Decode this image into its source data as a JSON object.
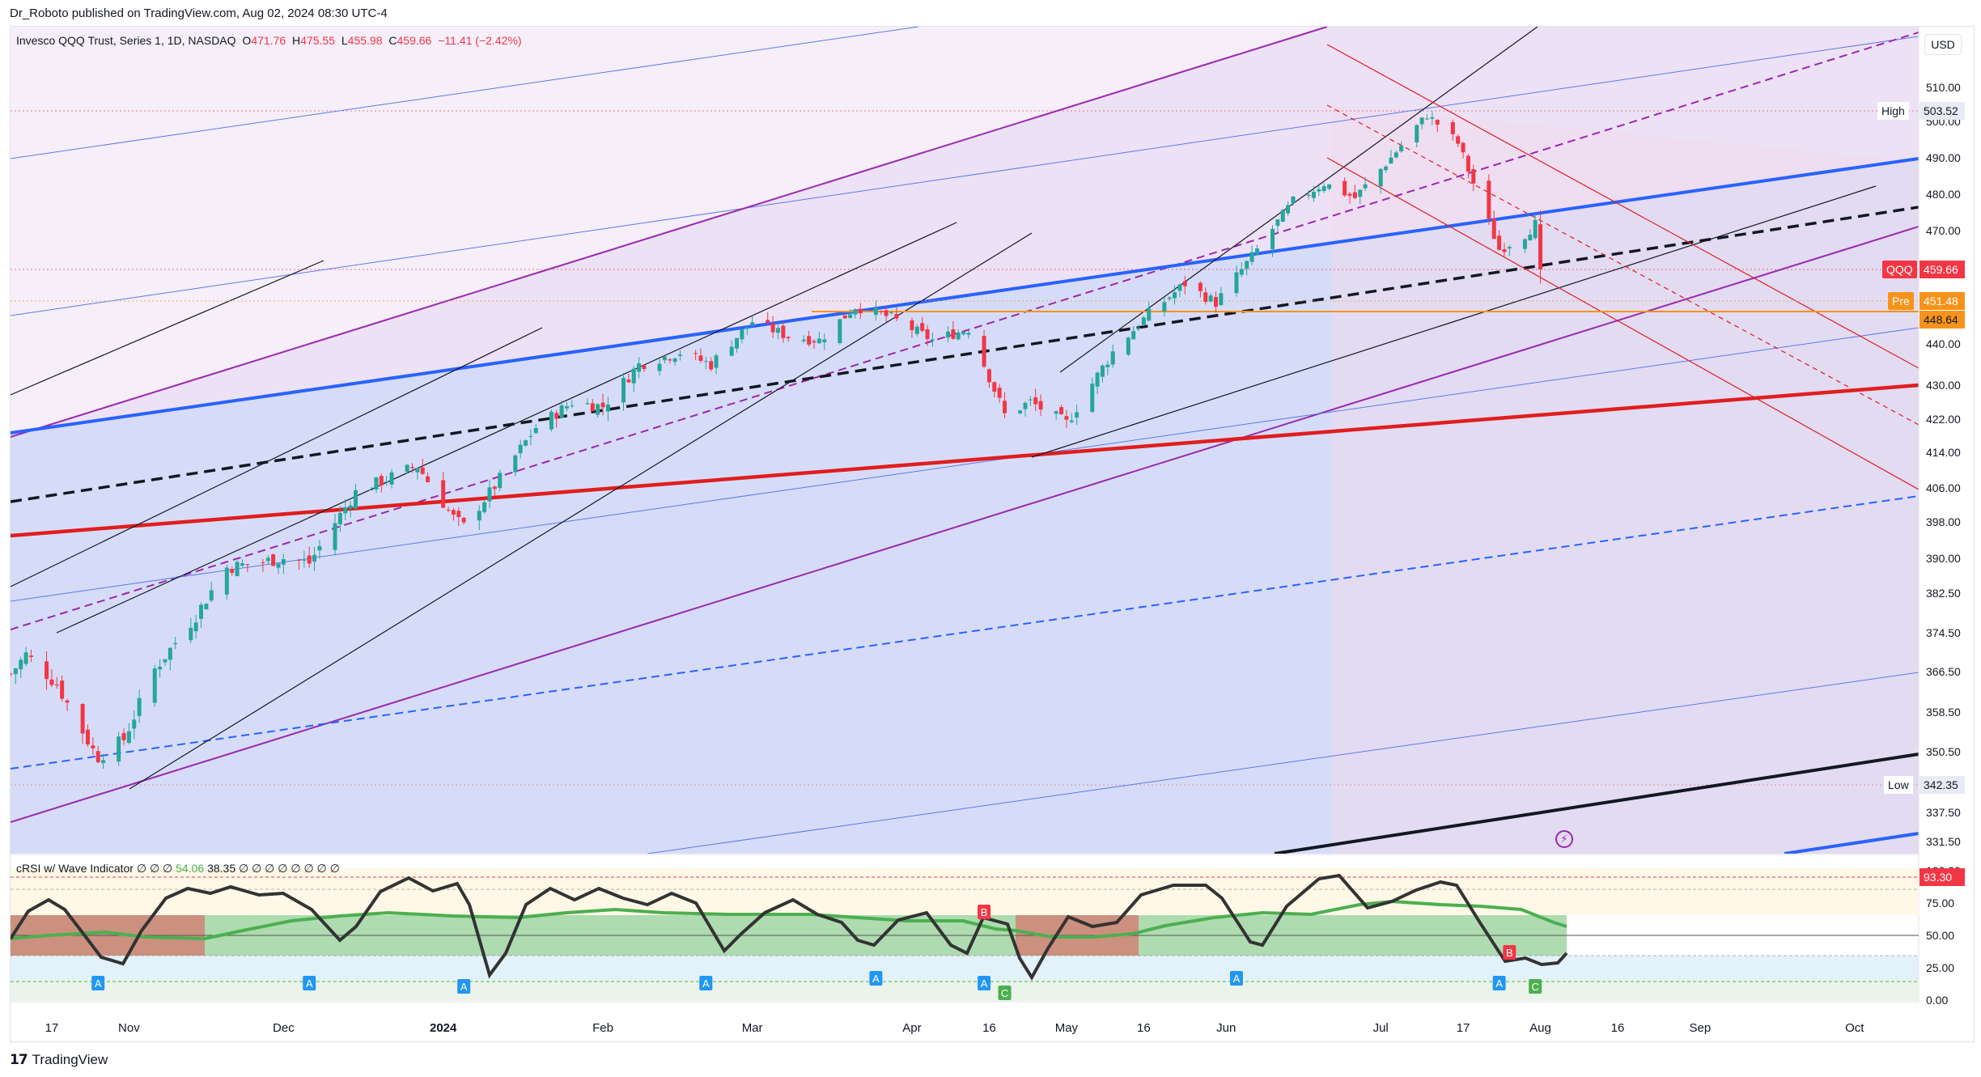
{
  "header": {
    "published_by": "Dr_Roboto published on TradingView.com, Aug 02, 2024 08:30 UTC-4"
  },
  "legend": {
    "instrument": "Invesco QQQ Trust, Series 1, 1D, NASDAQ",
    "o_label": "O",
    "o_value": "471.76",
    "h_label": "H",
    "h_value": "475.55",
    "l_label": "L",
    "l_value": "455.98",
    "c_label": "C",
    "c_value": "459.66",
    "change": "−11.41 (−2.42%)"
  },
  "currency_button": "USD",
  "indicator_legend": {
    "name": "cRSI w/ Wave Indicator",
    "pre": "∅ ∅ ∅",
    "v1": "54.06",
    "v2": "38.35",
    "post": "∅ ∅ ∅ ∅ ∅ ∅ ∅ ∅"
  },
  "price_tags": {
    "high_label": "High",
    "high_value": "503.52",
    "symbol": "QQQ",
    "last_value": "459.66",
    "pre_label": "Pre",
    "pre_value": "451.48",
    "orange_value": "448.64",
    "low_label": "Low",
    "low_value": "342.35",
    "indicator_value": "93.30"
  },
  "y_axis_labels": [
    "510.00",
    "500.00",
    "490.00",
    "480.00",
    "470.00",
    "440.00",
    "430.00",
    "422.00",
    "414.00",
    "406.00",
    "398.00",
    "390.00",
    "382.50",
    "374.50",
    "366.50",
    "358.50",
    "350.50",
    "337.50",
    "331.50"
  ],
  "indicator_y_labels": [
    "100.00",
    "75.00",
    "50.00",
    "25.00",
    "0.00"
  ],
  "x_axis_labels": [
    "17",
    "Nov",
    "Dec",
    "2024",
    "Feb",
    "Mar",
    "Apr",
    "16",
    "May",
    "16",
    "Jun",
    "Jul",
    "17",
    "Aug",
    "16",
    "Sep",
    "Oct"
  ],
  "wave_markers": [
    "A",
    "A",
    "A",
    "A",
    "A",
    "A",
    "C",
    "B",
    "A",
    "A",
    "B",
    "C"
  ],
  "brand": "TradingView",
  "colors": {
    "up": "#26a69a",
    "down": "#f23645",
    "channel_blue": "#2962ff",
    "channel_purple": "#9c27b0",
    "red_trend": "#e01e1e",
    "orange_line": "#f7931a"
  },
  "chart_data": {
    "type": "candlestick",
    "title": "Invesco QQQ Trust, Series 1, 1D, NASDAQ",
    "ylim": [
      328,
      514
    ],
    "x_range": [
      "2023-10-09",
      "2024-10-07"
    ],
    "last": {
      "open": 471.76,
      "high": 475.55,
      "low": 455.98,
      "close": 459.66
    },
    "period_high": 503.52,
    "period_low": 342.35,
    "pre_market": 451.48,
    "price_path": [
      [
        "2023-10-09",
        366
      ],
      [
        "2023-10-12",
        370
      ],
      [
        "2023-10-18",
        364
      ],
      [
        "2023-10-26",
        349
      ],
      [
        "2023-10-31",
        353
      ],
      [
        "2023-11-06",
        367
      ],
      [
        "2023-11-14",
        378
      ],
      [
        "2023-11-20",
        388
      ],
      [
        "2023-12-01",
        390
      ],
      [
        "2023-12-06",
        389
      ],
      [
        "2023-12-15",
        405
      ],
      [
        "2023-12-27",
        411
      ],
      [
        "2024-01-03",
        399
      ],
      [
        "2024-01-05",
        397
      ],
      [
        "2024-01-12",
        408
      ],
      [
        "2024-01-19",
        420
      ],
      [
        "2024-01-26",
        426
      ],
      [
        "2024-02-01",
        425
      ],
      [
        "2024-02-08",
        435
      ],
      [
        "2024-02-16",
        438
      ],
      [
        "2024-02-22",
        435
      ],
      [
        "2024-03-01",
        446
      ],
      [
        "2024-03-08",
        442
      ],
      [
        "2024-03-14",
        441
      ],
      [
        "2024-03-21",
        450
      ],
      [
        "2024-03-28",
        447
      ],
      [
        "2024-04-05",
        441
      ],
      [
        "2024-04-12",
        444
      ],
      [
        "2024-04-19",
        423
      ],
      [
        "2024-04-24",
        426
      ],
      [
        "2024-05-01",
        421
      ],
      [
        "2024-05-10",
        438
      ],
      [
        "2024-05-17",
        448
      ],
      [
        "2024-05-24",
        456
      ],
      [
        "2024-05-30",
        451
      ],
      [
        "2024-06-06",
        463
      ],
      [
        "2024-06-14",
        478
      ],
      [
        "2024-06-20",
        483
      ],
      [
        "2024-06-26",
        479
      ],
      [
        "2024-07-03",
        490
      ],
      [
        "2024-07-10",
        502
      ],
      [
        "2024-07-16",
        494
      ],
      [
        "2024-07-19",
        483
      ],
      [
        "2024-07-24",
        465
      ],
      [
        "2024-07-29",
        469
      ],
      [
        "2024-07-31",
        471.76
      ],
      [
        "2024-08-01",
        459.66
      ]
    ],
    "indicator": {
      "name": "cRSI w/ Wave Indicator",
      "ylim": [
        0,
        100
      ],
      "levels": [
        93.3,
        75,
        50,
        25
      ],
      "last_values": [
        54.06,
        38.35
      ]
    }
  }
}
